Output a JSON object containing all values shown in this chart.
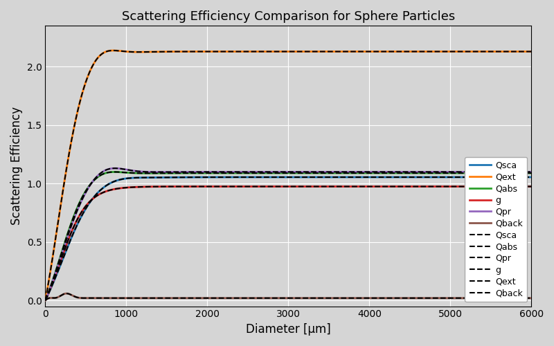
{
  "title": "Scattering Efficiency Comparison for Sphere Particles",
  "xlabel": "Diameter [μm]",
  "ylabel": "Scattering Efficiency",
  "xlim": [
    0,
    6000
  ],
  "ylim": [
    -0.05,
    2.35
  ],
  "background_color": "#d5d5d5",
  "grid_color": "white",
  "figsize": [
    8.0,
    5.0
  ],
  "dpi": 100,
  "curves": {
    "Qsca": {
      "color": "#1f77b4",
      "plateau": 1.055,
      "overshoot": 0.025,
      "rise_k": 0.0048,
      "x0": 200,
      "osc_amp": 0.0,
      "osc_freq": 0.0,
      "osc_decay": 0.001
    },
    "Qext": {
      "color": "#ff7f0e",
      "plateau": 2.13,
      "overshoot": 0.09,
      "rise_k": 0.006,
      "x0": 150,
      "osc_amp": 0.0,
      "osc_freq": 0.0,
      "osc_decay": 0.001
    },
    "Qabs": {
      "color": "#2ca02c",
      "plateau": 1.09,
      "overshoot": 0.05,
      "rise_k": 0.006,
      "x0": 180,
      "osc_amp": 0.0,
      "osc_freq": 0.0,
      "osc_decay": 0.001
    },
    "g": {
      "color": "#d62728",
      "plateau": 0.975,
      "overshoot": 0.0,
      "rise_k": 0.006,
      "x0": 180,
      "osc_amp": 0.0,
      "osc_freq": 0.0,
      "osc_decay": 0.001
    },
    "Qpr": {
      "color": "#9467bd",
      "plateau": 1.1,
      "overshoot": 0.08,
      "rise_k": 0.0055,
      "x0": 180,
      "osc_amp": 0.0,
      "osc_freq": 0.0,
      "osc_decay": 0.001
    },
    "Qback": {
      "color": "#8c564b",
      "plateau": 0.02,
      "overshoot": 0.04,
      "rise_k": 0.02,
      "x0": 100,
      "osc_amp": 0.025,
      "osc_freq": 0.025,
      "osc_decay": 0.008
    }
  },
  "legend_solid_order": [
    "Qsca",
    "Qext",
    "Qabs",
    "g",
    "Qpr",
    "Qback"
  ],
  "legend_dashed_order": [
    "Qsca",
    "Qabs",
    "Qpr",
    "g",
    "Qext",
    "Qback"
  ],
  "x_max": 6000,
  "n_points": 1000
}
